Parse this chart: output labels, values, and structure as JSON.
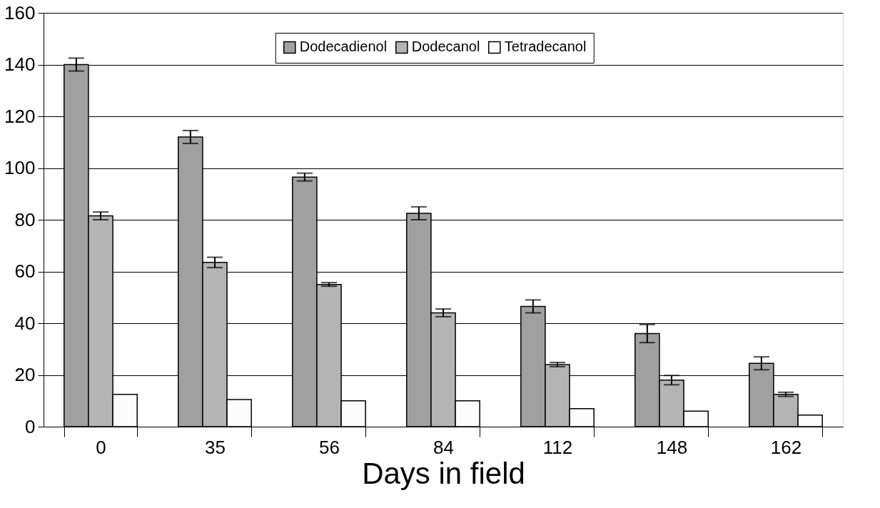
{
  "chart_data": {
    "type": "bar",
    "xlabel": "Days in field",
    "categories": [
      "0",
      "35",
      "56",
      "84",
      "112",
      "148",
      "162"
    ],
    "series": [
      {
        "name": "Dodecadienol",
        "color": "#a0a0a0",
        "values": [
          140,
          112,
          96.5,
          82.5,
          46.5,
          36,
          24.5
        ],
        "errors": [
          2.5,
          2.5,
          1.5,
          2.5,
          2.5,
          3.5,
          2.5
        ]
      },
      {
        "name": "Dodecanol",
        "color": "#b4b4b4",
        "values": [
          81.5,
          63.5,
          55,
          44,
          24,
          18,
          12.5
        ],
        "errors": [
          1.5,
          2,
          0.7,
          1.5,
          0.8,
          1.8,
          0.8
        ]
      },
      {
        "name": "Tetradecanol",
        "color": "#fcfcfc",
        "values": [
          12.5,
          10.5,
          10,
          10,
          7,
          6,
          4.5
        ]
      }
    ],
    "ylim": [
      0,
      160
    ],
    "yticks": [
      0,
      20,
      40,
      60,
      80,
      100,
      120,
      140,
      160
    ],
    "grid": "y",
    "legend": "top"
  }
}
